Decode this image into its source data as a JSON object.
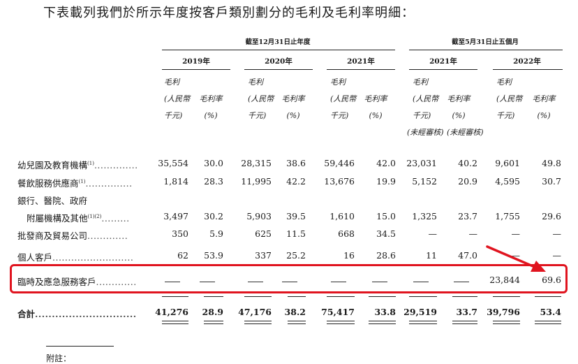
{
  "heading": "下表載列我們於所示年度按客戶類別劃分的毛利及毛利率明細：",
  "group_headers": {
    "year_end": "截至12月31日止年度",
    "five_months": "截至5月31日止五個月"
  },
  "years": [
    "2019年",
    "2020年",
    "2021年",
    "2021年",
    "2022年"
  ],
  "col_headers": {
    "gp": [
      "毛利",
      "(人民幣",
      "千元)"
    ],
    "margin": [
      "毛利率",
      "(%)"
    ],
    "unaudited": "(未經審核)"
  },
  "rows": [
    {
      "label": "幼兒園及教育機構",
      "sup": "(1)",
      "values": [
        "35,554",
        "30.0",
        "28,315",
        "38.6",
        "59,446",
        "42.0",
        "23,031",
        "40.2",
        "9,601",
        "49.8"
      ]
    },
    {
      "label": "餐飲服務供應商",
      "sup": "(1)",
      "values": [
        "1,814",
        "28.3",
        "11,995",
        "42.2",
        "13,676",
        "19.9",
        "5,152",
        "20.9",
        "4,595",
        "30.7"
      ]
    },
    {
      "label": "銀行、醫院、政府",
      "label2": "附屬機構及其他",
      "sup": "(1)(2)",
      "values": [
        "3,497",
        "30.2",
        "5,903",
        "39.5",
        "1,610",
        "15.0",
        "1,325",
        "23.7",
        "1,755",
        "29.6"
      ]
    },
    {
      "label": "批發商及貿易公司",
      "values": [
        "350",
        "5.9",
        "625",
        "11.5",
        "668",
        "34.5",
        "—",
        "—",
        "—",
        "—"
      ]
    },
    {
      "label": "個人客戶",
      "values": [
        "62",
        "53.9",
        "337",
        "25.2",
        "16",
        "28.6",
        "11",
        "47.0",
        "—",
        "—"
      ]
    },
    {
      "label": "臨時及應急服務客戶",
      "values": [
        "—",
        "—",
        "—",
        "—",
        "—",
        "—",
        "—",
        "—",
        "23,844",
        "69.6"
      ]
    }
  ],
  "total": {
    "label": "合計",
    "values": [
      "41,276",
      "28.9",
      "47,176",
      "38.2",
      "75,417",
      "33.8",
      "29,519",
      "33.7",
      "39,796",
      "53.4"
    ]
  },
  "footnote": "附註："
}
